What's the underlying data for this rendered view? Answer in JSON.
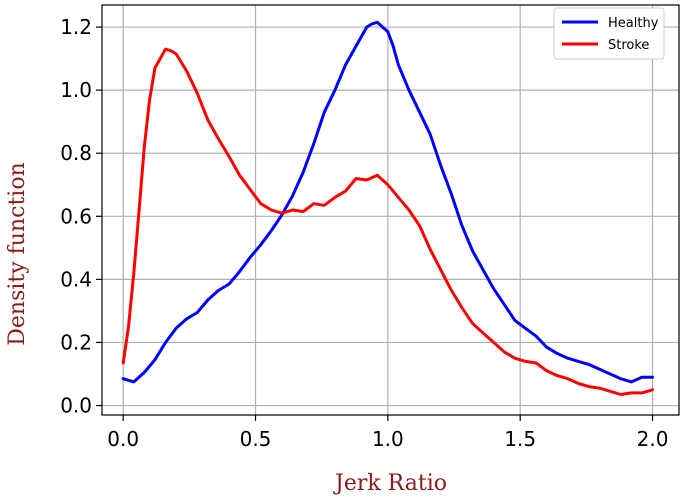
{
  "chart_data": {
    "type": "line",
    "xlabel": "Jerk Ratio",
    "ylabel": "Density function",
    "label_color": "#8b1a1a",
    "xlim": [
      -0.08,
      2.1
    ],
    "ylim": [
      -0.03,
      1.27
    ],
    "xticks": [
      "0.0",
      "0.5",
      "1.0",
      "1.5",
      "2.0"
    ],
    "yticks": [
      "0.0",
      "0.2",
      "0.4",
      "0.6",
      "0.8",
      "1.0",
      "1.2"
    ],
    "grid": true,
    "legend_position": "top-right",
    "series": [
      {
        "name": "Healthy",
        "color": "#0000ff",
        "x": [
          0.0,
          0.04,
          0.08,
          0.12,
          0.16,
          0.2,
          0.24,
          0.28,
          0.32,
          0.36,
          0.4,
          0.44,
          0.48,
          0.52,
          0.56,
          0.6,
          0.64,
          0.68,
          0.72,
          0.76,
          0.8,
          0.84,
          0.88,
          0.92,
          0.94,
          0.96,
          0.98,
          1.0,
          1.02,
          1.04,
          1.08,
          1.12,
          1.16,
          1.2,
          1.24,
          1.28,
          1.32,
          1.36,
          1.4,
          1.44,
          1.48,
          1.52,
          1.56,
          1.6,
          1.64,
          1.68,
          1.72,
          1.76,
          1.8,
          1.84,
          1.88,
          1.92,
          1.96,
          2.0
        ],
        "y": [
          0.085,
          0.075,
          0.105,
          0.145,
          0.2,
          0.245,
          0.275,
          0.295,
          0.335,
          0.365,
          0.385,
          0.425,
          0.47,
          0.51,
          0.555,
          0.605,
          0.665,
          0.74,
          0.83,
          0.93,
          1.0,
          1.08,
          1.14,
          1.2,
          1.21,
          1.215,
          1.2,
          1.185,
          1.14,
          1.08,
          1.0,
          0.93,
          0.86,
          0.76,
          0.67,
          0.57,
          0.49,
          0.43,
          0.37,
          0.32,
          0.27,
          0.245,
          0.22,
          0.185,
          0.165,
          0.15,
          0.14,
          0.13,
          0.115,
          0.1,
          0.085,
          0.075,
          0.09,
          0.09
        ]
      },
      {
        "name": "Stroke",
        "color": "#ff0000",
        "x": [
          0.0,
          0.02,
          0.04,
          0.06,
          0.08,
          0.1,
          0.12,
          0.14,
          0.16,
          0.18,
          0.2,
          0.24,
          0.28,
          0.32,
          0.36,
          0.4,
          0.44,
          0.48,
          0.52,
          0.56,
          0.6,
          0.64,
          0.68,
          0.72,
          0.76,
          0.8,
          0.84,
          0.88,
          0.92,
          0.96,
          1.0,
          1.04,
          1.08,
          1.12,
          1.16,
          1.2,
          1.24,
          1.28,
          1.32,
          1.36,
          1.4,
          1.44,
          1.48,
          1.52,
          1.56,
          1.6,
          1.64,
          1.68,
          1.72,
          1.76,
          1.8,
          1.84,
          1.88,
          1.92,
          1.96,
          2.0
        ],
        "y": [
          0.135,
          0.25,
          0.42,
          0.62,
          0.82,
          0.97,
          1.07,
          1.1,
          1.13,
          1.125,
          1.115,
          1.06,
          0.99,
          0.905,
          0.845,
          0.79,
          0.73,
          0.685,
          0.64,
          0.62,
          0.61,
          0.62,
          0.615,
          0.64,
          0.635,
          0.66,
          0.68,
          0.72,
          0.715,
          0.73,
          0.7,
          0.66,
          0.62,
          0.57,
          0.495,
          0.43,
          0.365,
          0.31,
          0.26,
          0.23,
          0.2,
          0.17,
          0.15,
          0.14,
          0.135,
          0.11,
          0.095,
          0.085,
          0.07,
          0.06,
          0.055,
          0.045,
          0.035,
          0.04,
          0.04,
          0.05
        ]
      }
    ]
  }
}
